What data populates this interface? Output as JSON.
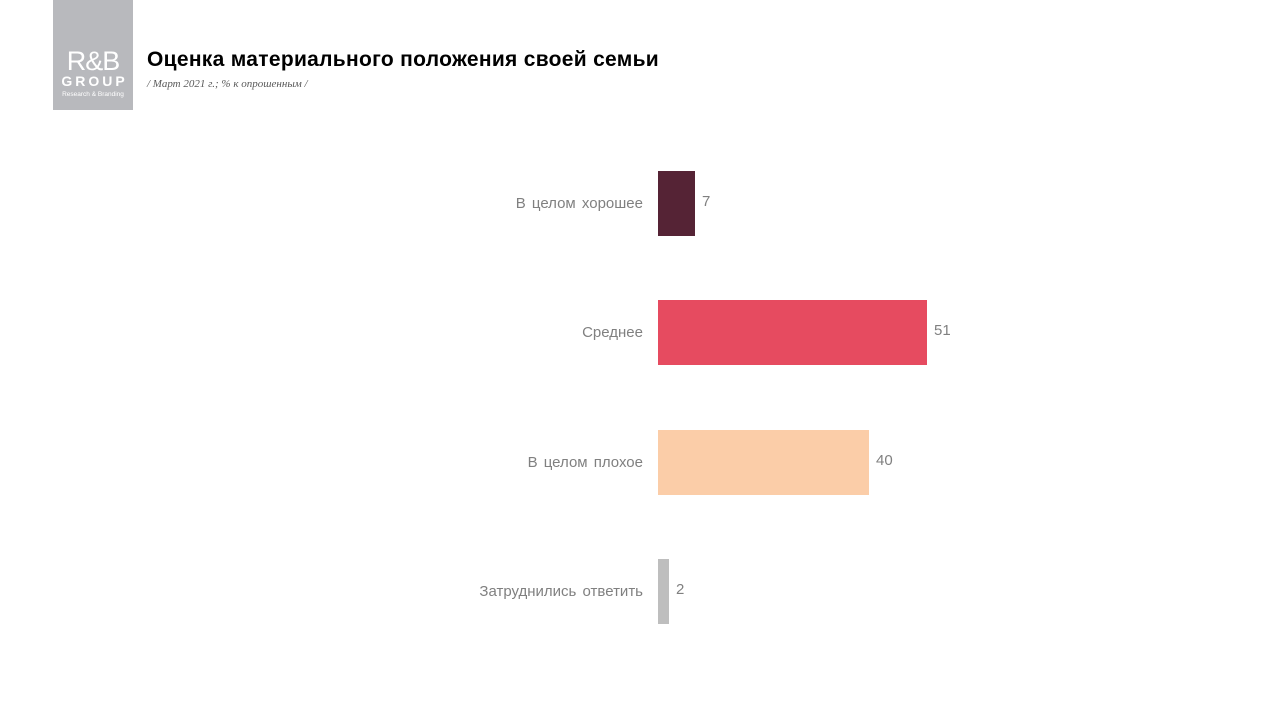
{
  "logo": {
    "line1": "R&B",
    "line2": "GROUP",
    "tagline": "Research & Branding"
  },
  "header": {
    "title": "Оценка материального положения своей семьи",
    "subtitle": "/ Март 2021 г.; % к опрошенным  /"
  },
  "colors": {
    "good": "#552335",
    "average": "#e64b60",
    "bad": "#fbcda8",
    "unsure": "#bebebe",
    "logo_bg": "#b8b9bd",
    "label": "#808080"
  },
  "chart_data": {
    "type": "bar",
    "orientation": "horizontal",
    "title": "Оценка материального положения своей семьи",
    "subtitle": "/ Март 2021 г.; % к опрошенным  /",
    "categories": [
      "В целом хорошее",
      "Среднее",
      "В целом плохое",
      "Затруднились  ответить"
    ],
    "values": [
      7,
      51,
      40,
      2
    ],
    "colors": [
      "#552335",
      "#e64b60",
      "#fbcda8",
      "#bebebe"
    ],
    "xlabel": "",
    "ylabel": "",
    "unit": "%",
    "data_labels": true,
    "grid": false,
    "legend": false
  }
}
